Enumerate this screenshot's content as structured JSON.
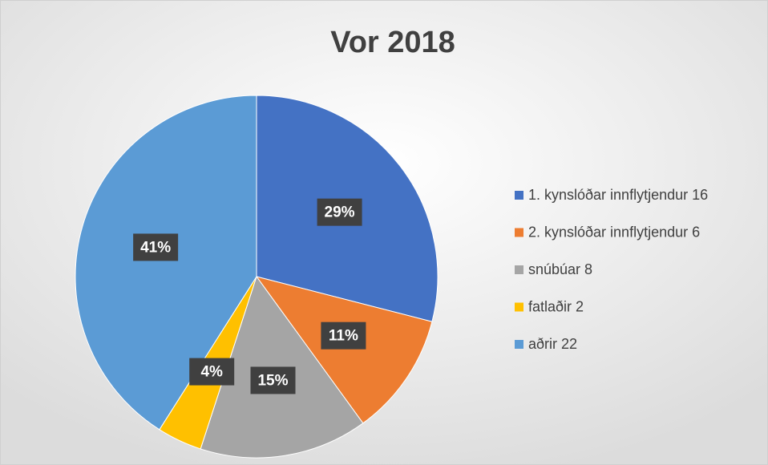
{
  "chart_data": {
    "type": "pie",
    "title": "Vor 2018",
    "categories": [
      "1. kynslóðar innflytjendur 16",
      "2. kynslóðar innflytjendur 6",
      "snúbúar 8",
      "fatlaðir 2",
      "aðrir 22"
    ],
    "values": [
      29,
      11,
      15,
      4,
      41
    ],
    "value_labels": [
      "29%",
      "11%",
      "15%",
      "4%",
      "41%"
    ],
    "colors": [
      "#4472c4",
      "#ed7d31",
      "#a5a5a5",
      "#ffc000",
      "#5b9bd5"
    ],
    "legend": "right"
  }
}
